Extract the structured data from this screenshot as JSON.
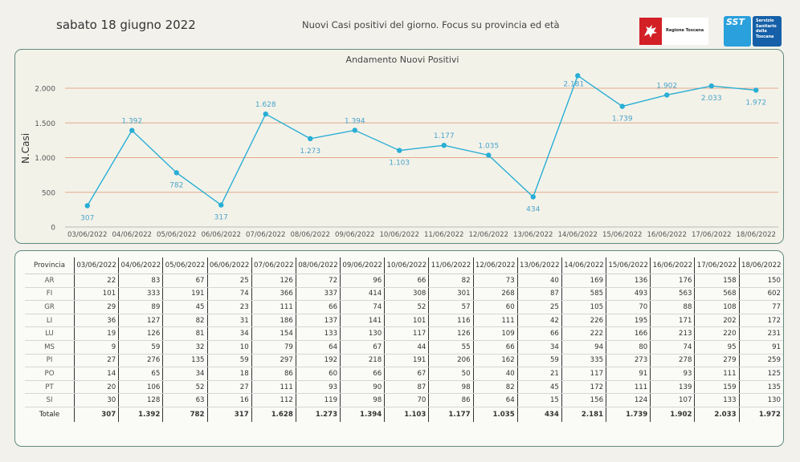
{
  "header": {
    "date": "sabato 18 giugno 2022",
    "subtitle": "Nuovi Casi positivi del giorno. Focus su provincia ed età",
    "logo_region_text": "Regione Toscana",
    "logo_sst_short": "SST",
    "logo_sst_text": "Servizio Sanitario della Toscana"
  },
  "colors": {
    "line": "#29aed5",
    "grid": "#e3a98a",
    "label": "#4aa3c9",
    "border": "#5f8a80"
  },
  "chart_data": {
    "type": "line",
    "title": "Andamento Nuovi Positivi",
    "ylabel": "N.Casi",
    "xlabel": "",
    "ylim": [
      0,
      2300
    ],
    "yticks": [
      0,
      500,
      1000,
      1500,
      2000
    ],
    "ytick_labels": [
      "0",
      "500",
      "1.000",
      "1.500",
      "2.000"
    ],
    "grid": true,
    "categories": [
      "03/06/2022",
      "04/06/2022",
      "05/06/2022",
      "06/06/2022",
      "07/06/2022",
      "08/06/2022",
      "09/06/2022",
      "10/06/2022",
      "11/06/2022",
      "12/06/2022",
      "13/06/2022",
      "14/06/2022",
      "15/06/2022",
      "16/06/2022",
      "17/06/2022",
      "18/06/2022"
    ],
    "values": [
      307,
      1392,
      782,
      317,
      1628,
      1273,
      1394,
      1103,
      1177,
      1035,
      434,
      2181,
      1739,
      1902,
      2033,
      1972
    ],
    "value_labels": [
      "307",
      "1.392",
      "782",
      "317",
      "1.628",
      "1.273",
      "1.394",
      "1.103",
      "1.177",
      "1.035",
      "434",
      "2.181",
      "1.739",
      "1.902",
      "2.033",
      "1.972"
    ]
  },
  "table": {
    "header_label": "Provincia",
    "dates": [
      "03/06/2022",
      "04/06/2022",
      "05/06/2022",
      "06/06/2022",
      "07/06/2022",
      "08/06/2022",
      "09/06/2022",
      "10/06/2022",
      "11/06/2022",
      "12/06/2022",
      "13/06/2022",
      "14/06/2022",
      "15/06/2022",
      "16/06/2022",
      "17/06/2022",
      "18/06/2022"
    ],
    "rows": [
      {
        "prov": "AR",
        "vals": [
          "22",
          "83",
          "67",
          "25",
          "126",
          "72",
          "96",
          "66",
          "82",
          "73",
          "40",
          "169",
          "136",
          "176",
          "158",
          "150"
        ]
      },
      {
        "prov": "FI",
        "vals": [
          "101",
          "333",
          "191",
          "74",
          "366",
          "337",
          "414",
          "308",
          "301",
          "268",
          "87",
          "585",
          "493",
          "563",
          "568",
          "602"
        ]
      },
      {
        "prov": "GR",
        "vals": [
          "29",
          "89",
          "45",
          "23",
          "111",
          "66",
          "74",
          "52",
          "57",
          "60",
          "25",
          "105",
          "70",
          "88",
          "108",
          "77"
        ]
      },
      {
        "prov": "LI",
        "vals": [
          "36",
          "127",
          "82",
          "31",
          "186",
          "137",
          "141",
          "101",
          "116",
          "111",
          "42",
          "226",
          "195",
          "171",
          "202",
          "172"
        ]
      },
      {
        "prov": "LU",
        "vals": [
          "19",
          "126",
          "81",
          "34",
          "154",
          "133",
          "130",
          "117",
          "126",
          "109",
          "66",
          "222",
          "166",
          "213",
          "220",
          "231"
        ]
      },
      {
        "prov": "MS",
        "vals": [
          "9",
          "59",
          "32",
          "10",
          "79",
          "64",
          "67",
          "44",
          "55",
          "66",
          "34",
          "94",
          "80",
          "74",
          "95",
          "91"
        ]
      },
      {
        "prov": "PI",
        "vals": [
          "27",
          "276",
          "135",
          "59",
          "297",
          "192",
          "218",
          "191",
          "206",
          "162",
          "59",
          "335",
          "273",
          "278",
          "279",
          "259"
        ]
      },
      {
        "prov": "PO",
        "vals": [
          "14",
          "65",
          "34",
          "18",
          "86",
          "60",
          "66",
          "67",
          "50",
          "40",
          "21",
          "117",
          "91",
          "93",
          "111",
          "125"
        ]
      },
      {
        "prov": "PT",
        "vals": [
          "20",
          "106",
          "52",
          "27",
          "111",
          "93",
          "90",
          "87",
          "98",
          "82",
          "45",
          "172",
          "111",
          "139",
          "159",
          "135"
        ]
      },
      {
        "prov": "SI",
        "vals": [
          "30",
          "128",
          "63",
          "16",
          "112",
          "119",
          "98",
          "70",
          "86",
          "64",
          "15",
          "156",
          "124",
          "107",
          "133",
          "130"
        ]
      }
    ],
    "total": {
      "prov": "Totale",
      "vals": [
        "307",
        "1.392",
        "782",
        "317",
        "1.628",
        "1.273",
        "1.394",
        "1.103",
        "1.177",
        "1.035",
        "434",
        "2.181",
        "1.739",
        "1.902",
        "2.033",
        "1.972"
      ]
    }
  }
}
